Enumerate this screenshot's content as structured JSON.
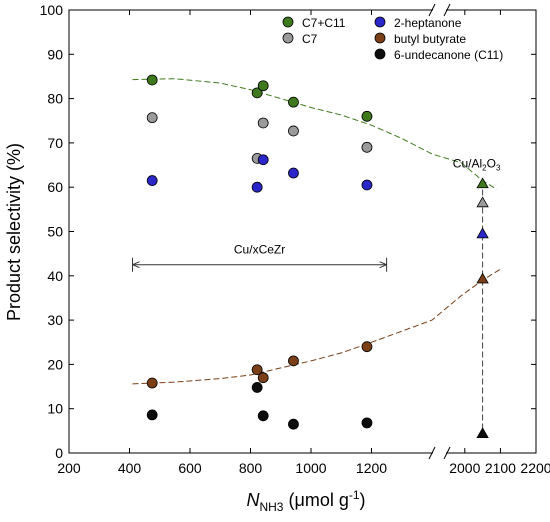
{
  "chart_data": {
    "type": "scatter",
    "title": "",
    "ylabel": "Product selectivity (%)",
    "xlabel": {
      "italic": "N",
      "sub": "NH3",
      "unit_pre": " (μmol g",
      "unit_sup": "-1",
      "unit_post": ")"
    },
    "ylim": [
      0,
      100
    ],
    "yticks": [
      0,
      10,
      20,
      30,
      40,
      50,
      60,
      70,
      80,
      90,
      100
    ],
    "x_segments": [
      {
        "range": [
          200,
          1400
        ],
        "ticks": [
          200,
          400,
          600,
          800,
          1000,
          1200
        ]
      },
      {
        "range": [
          1950,
          2200
        ],
        "ticks": [
          2000,
          2100,
          2200
        ]
      }
    ],
    "x_break": "//",
    "legend": {
      "placement": "top-right",
      "entries": [
        {
          "name": "C7+C11",
          "color": "#3e7a1d"
        },
        {
          "name": "2-heptanone",
          "color": "#2a26c8"
        },
        {
          "name": "C7",
          "color": "#9a9a9a"
        },
        {
          "name": "butyl butyrate",
          "color": "#7a3f16"
        },
        {
          "name": "6-undecanone (C11)",
          "color": "#0d0d0d"
        }
      ]
    },
    "series": [
      {
        "name": "C7+C11",
        "marker": "circle",
        "color": "#3e7a1d",
        "points": [
          [
            475,
            84.2
          ],
          [
            822,
            81.3
          ],
          [
            842,
            82.9
          ],
          [
            942,
            79.2
          ],
          [
            1185,
            76.0
          ]
        ]
      },
      {
        "name": "C7",
        "marker": "circle",
        "color": "#9a9a9a",
        "points": [
          [
            475,
            75.7
          ],
          [
            822,
            66.5
          ],
          [
            842,
            74.5
          ],
          [
            942,
            72.7
          ],
          [
            1185,
            69.0
          ]
        ]
      },
      {
        "name": "2-heptanone",
        "marker": "circle",
        "color": "#2a26c8",
        "points": [
          [
            475,
            61.5
          ],
          [
            822,
            60.0
          ],
          [
            842,
            66.2
          ],
          [
            942,
            63.2
          ],
          [
            1185,
            60.5
          ]
        ]
      },
      {
        "name": "butyl butyrate",
        "marker": "circle",
        "color": "#7a3f16",
        "points": [
          [
            475,
            15.8
          ],
          [
            822,
            18.8
          ],
          [
            842,
            17.0
          ],
          [
            942,
            20.8
          ],
          [
            1185,
            24.0
          ]
        ]
      },
      {
        "name": "6-undecanone (C11)",
        "marker": "circle",
        "color": "#0d0d0d",
        "points": [
          [
            475,
            8.6
          ],
          [
            822,
            14.8
          ],
          [
            842,
            8.4
          ],
          [
            942,
            6.5
          ],
          [
            1185,
            6.8
          ]
        ]
      },
      {
        "name": "Cu/Al2O3 C7+C11",
        "marker": "triangle",
        "color": "#3e7a1d",
        "points": [
          [
            2050,
            60.8
          ]
        ]
      },
      {
        "name": "Cu/Al2O3 C7",
        "marker": "triangle",
        "color": "#9a9a9a",
        "points": [
          [
            2050,
            56.5
          ]
        ]
      },
      {
        "name": "Cu/Al2O3 2-heptanone",
        "marker": "triangle",
        "color": "#2a26c8",
        "points": [
          [
            2050,
            49.5
          ]
        ]
      },
      {
        "name": "Cu/Al2O3 butyl butyrate",
        "marker": "triangle",
        "color": "#7a3f16",
        "points": [
          [
            2050,
            39.3
          ]
        ]
      },
      {
        "name": "Cu/Al2O3 6-undecanone",
        "marker": "triangle",
        "color": "#0d0d0d",
        "points": [
          [
            2050,
            4.4
          ]
        ]
      }
    ],
    "trend_lines": [
      {
        "name": "C7+C11 trend",
        "color": "#3e7a1d",
        "style": "dashed",
        "points": [
          [
            410,
            84.3
          ],
          [
            550,
            84.5
          ],
          [
            700,
            83.5
          ],
          [
            800,
            82.0
          ],
          [
            900,
            80.0
          ],
          [
            1000,
            78.0
          ],
          [
            1100,
            76.3
          ],
          [
            1200,
            74.0
          ],
          [
            1300,
            71.0
          ],
          [
            1400,
            67.5
          ],
          [
            1990,
            65.5
          ],
          [
            2050,
            61.5
          ],
          [
            2090,
            59.5
          ]
        ]
      },
      {
        "name": "butyl butyrate trend",
        "color": "#7a3f16",
        "style": "dashed",
        "points": [
          [
            410,
            15.6
          ],
          [
            550,
            16.0
          ],
          [
            700,
            16.8
          ],
          [
            800,
            17.6
          ],
          [
            900,
            19.2
          ],
          [
            1000,
            20.8
          ],
          [
            1100,
            22.6
          ],
          [
            1200,
            25.0
          ],
          [
            1300,
            27.5
          ],
          [
            1400,
            30.0
          ],
          [
            1990,
            35.5
          ],
          [
            2050,
            39.0
          ],
          [
            2100,
            41.5
          ]
        ]
      }
    ],
    "annotations": [
      {
        "name": "cu-al2o3-label",
        "text": "Cu/Al",
        "sub": "2",
        "text2": "O",
        "sub2": "3",
        "x": 2050,
        "y": 64.5
      },
      {
        "name": "cu-xcezr-label",
        "text": "Cu/xCeZr",
        "x": 830,
        "y": 45.0
      }
    ],
    "range_arrow": {
      "x1": 410,
      "x2": 1250,
      "y": 42.5
    },
    "vertical_dashed": {
      "x": 2050,
      "y1": 61.5,
      "y2": 4.4
    }
  }
}
